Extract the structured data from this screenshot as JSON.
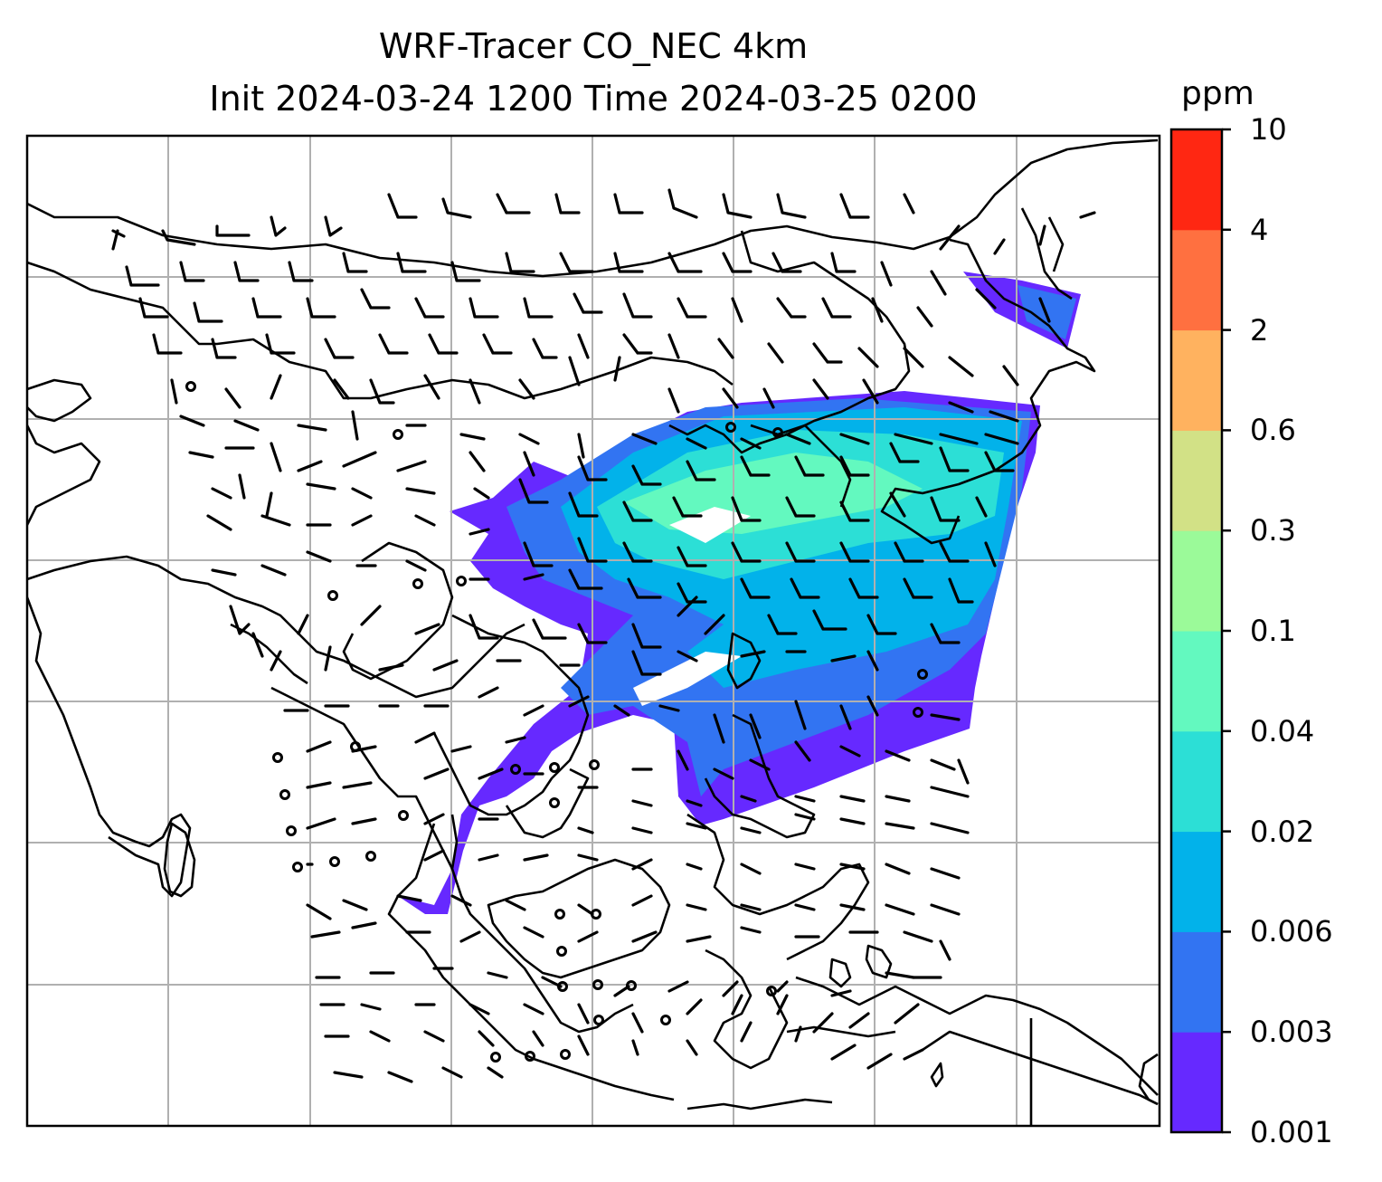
{
  "title": {
    "line1": "WRF-Tracer CO_NEC 4km",
    "line2": "Init 2024-03-24 1200 Time 2024-03-25 0200"
  },
  "colorbar": {
    "unit": "ppm",
    "levels": [
      "0.001",
      "0.003",
      "0.006",
      "0.02",
      "0.04",
      "0.1",
      "0.3",
      "0.6",
      "2",
      "4",
      "10"
    ],
    "colors": [
      "#6629ff",
      "#3274f2",
      "#02b2ea",
      "#2cdfd6",
      "#63f9bf",
      "#9bfa99",
      "#d2e186",
      "#ffb25f",
      "#ff7040",
      "#ff2712"
    ]
  },
  "map": {
    "gridlines": true,
    "coastline_color": "#000000",
    "gridline_color": "#b0b0b0",
    "wind_barbs": true,
    "tracer_field": "CO_NEC"
  }
}
